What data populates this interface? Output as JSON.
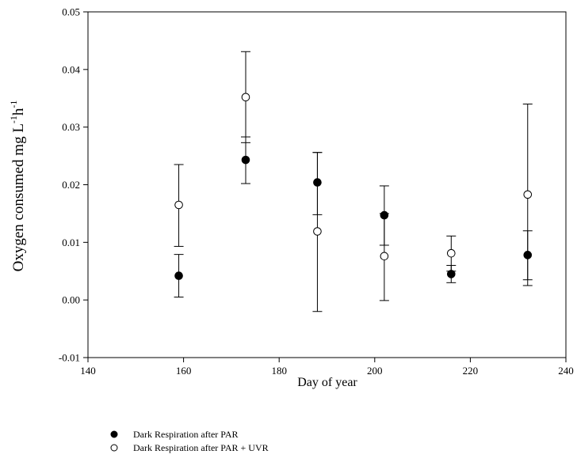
{
  "chart_data": {
    "type": "scatter",
    "title": "",
    "xlabel": "Day of year",
    "ylabel": {
      "part1": "Oxygen consumed mg L",
      "sup1": "-1",
      "part2": "h",
      "sup2": "-1"
    },
    "xlim": [
      140,
      240
    ],
    "ylim": [
      -0.01,
      0.05
    ],
    "xticks": [
      140,
      160,
      180,
      200,
      220,
      240
    ],
    "xtick_labels": [
      "140",
      "160",
      "180",
      "200",
      "220",
      "240"
    ],
    "yticks": [
      -0.01,
      0.0,
      0.01,
      0.02,
      0.03,
      0.04,
      0.05
    ],
    "ytick_labels": [
      "-0.01",
      "0.00",
      "0.01",
      "0.02",
      "0.03",
      "0.04",
      "0.05"
    ],
    "grid": false,
    "legend_position": "bottom-left",
    "series": [
      {
        "name": "Dark Respiration after PAR",
        "marker": "filled-circle",
        "color": "#000000",
        "x": [
          159,
          173,
          188,
          202,
          216,
          232
        ],
        "y": [
          0.0042,
          0.0243,
          0.0204,
          0.0147,
          0.0045,
          0.0078
        ],
        "err_low": [
          0.0005,
          0.0202,
          0.0148,
          0.0095,
          0.003,
          0.0035
        ],
        "err_high": [
          0.0079,
          0.0283,
          0.0256,
          0.0198,
          0.006,
          0.012
        ]
      },
      {
        "name": "Dark Respiration after PAR + UVR",
        "marker": "open-circle",
        "color": "#000000",
        "x": [
          159,
          173,
          188,
          202,
          216,
          232
        ],
        "y": [
          0.0165,
          0.0352,
          0.0119,
          0.0076,
          0.0081,
          0.0183
        ],
        "err_low": [
          0.0093,
          0.0273,
          -0.002,
          -0.0001,
          0.005,
          0.0025
        ],
        "err_high": [
          0.0235,
          0.0431,
          0.0256,
          0.015,
          0.0111,
          0.034
        ]
      }
    ]
  }
}
